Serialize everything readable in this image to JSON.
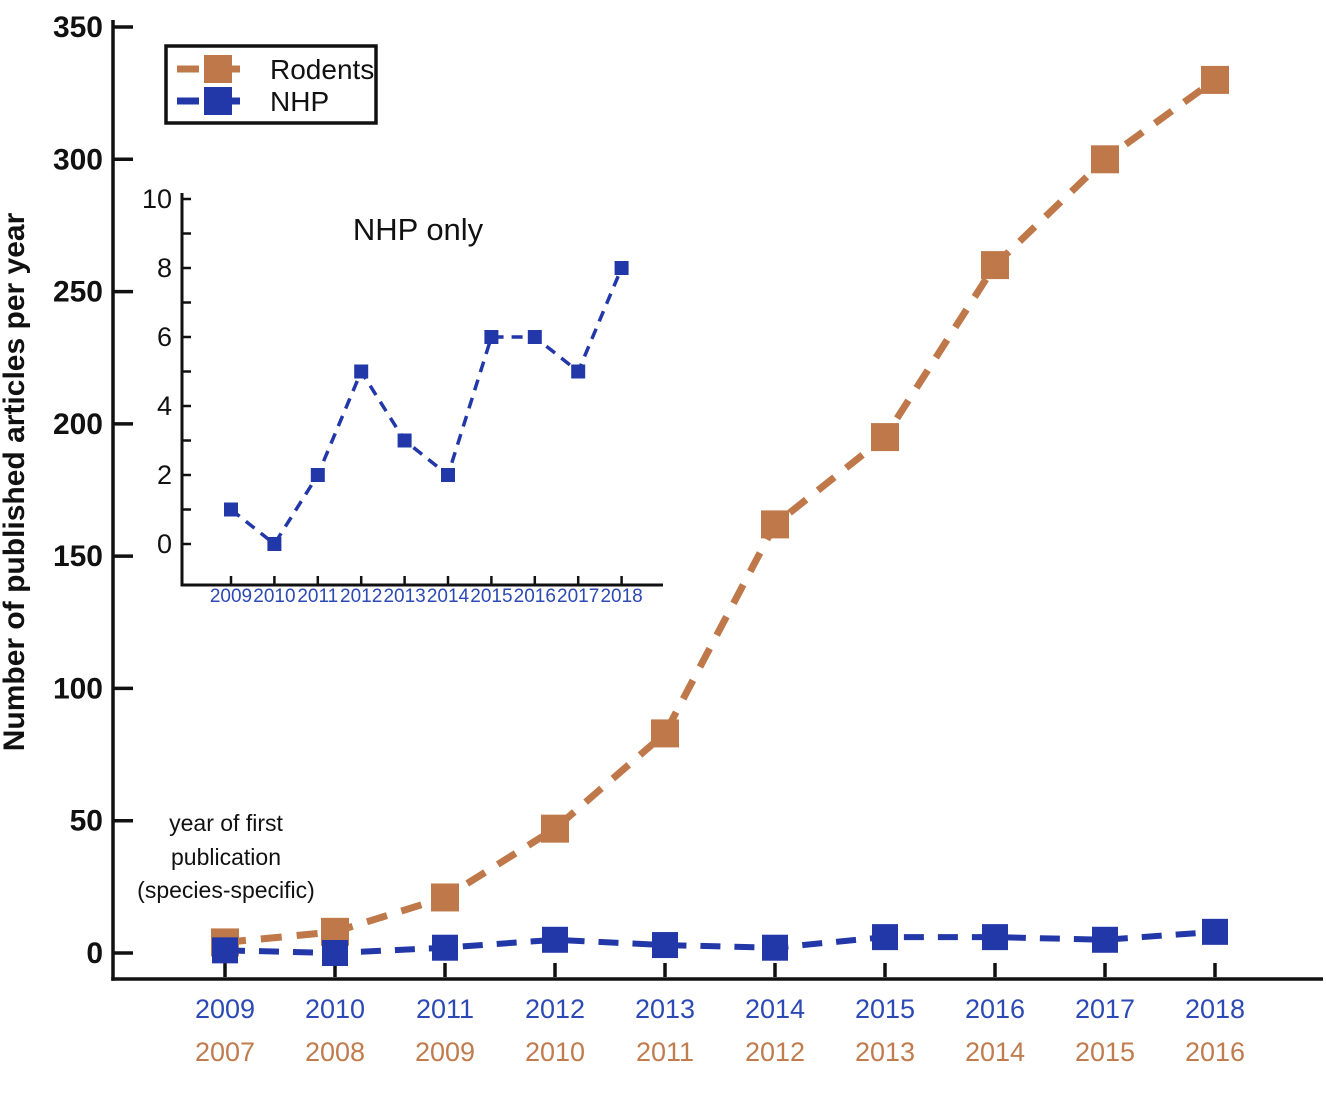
{
  "colors": {
    "rodents": "#BF7849",
    "nhp": "#2238A8",
    "rodents_label": "#C07C4E",
    "nhp_label": "#2C49B5",
    "axis": "#111111"
  },
  "annotation": {
    "lines": [
      "year of first",
      "publication",
      "(species-specific)"
    ]
  },
  "legend": {
    "position": "upper left",
    "items": [
      {
        "label": "Rodents",
        "color_key": "rodents"
      },
      {
        "label": "NHP",
        "color_key": "nhp"
      }
    ]
  },
  "chart_data": [
    {
      "id": "main",
      "type": "line",
      "title": "",
      "xlabel": "",
      "ylabel": "Number of published articles per year",
      "ylim": [
        0,
        350
      ],
      "yticks": [
        0,
        50,
        100,
        150,
        200,
        250,
        300,
        350
      ],
      "grid": false,
      "line_style": "dashed",
      "marker": "square",
      "x_axis_rows": [
        {
          "color_key": "nhp",
          "labels": [
            "2009",
            "2010",
            "2011",
            "2012",
            "2013",
            "2014",
            "2015",
            "2016",
            "2017",
            "2018"
          ]
        },
        {
          "color_key": "rodents",
          "labels": [
            "2007",
            "2008",
            "2009",
            "2010",
            "2011",
            "2012",
            "2013",
            "2014",
            "2015",
            "2016"
          ]
        }
      ],
      "x_axis_note": "dual year rows = year of first publication (species-specific)",
      "series": [
        {
          "name": "Rodents",
          "color_key": "rodents",
          "values": [
            4,
            8,
            21,
            47,
            83,
            162,
            195,
            260,
            300,
            330
          ]
        },
        {
          "name": "NHP",
          "color_key": "nhp",
          "values": [
            1,
            0,
            2,
            5,
            3,
            2,
            6,
            6,
            5,
            8
          ]
        }
      ]
    },
    {
      "id": "inset",
      "type": "line",
      "title": "NHP only",
      "xlabel": "",
      "ylabel": "",
      "ylim": [
        0,
        10
      ],
      "yticks": [
        0,
        2,
        4,
        6,
        8,
        10
      ],
      "grid": false,
      "line_style": "dashed",
      "marker": "square",
      "categories": [
        "2009",
        "2010",
        "2011",
        "2012",
        "2013",
        "2014",
        "2015",
        "2016",
        "2017",
        "2018"
      ],
      "series": [
        {
          "name": "NHP",
          "color_key": "nhp",
          "values": [
            1,
            0,
            2,
            5,
            3,
            2,
            6,
            6,
            5,
            8
          ]
        }
      ]
    }
  ]
}
